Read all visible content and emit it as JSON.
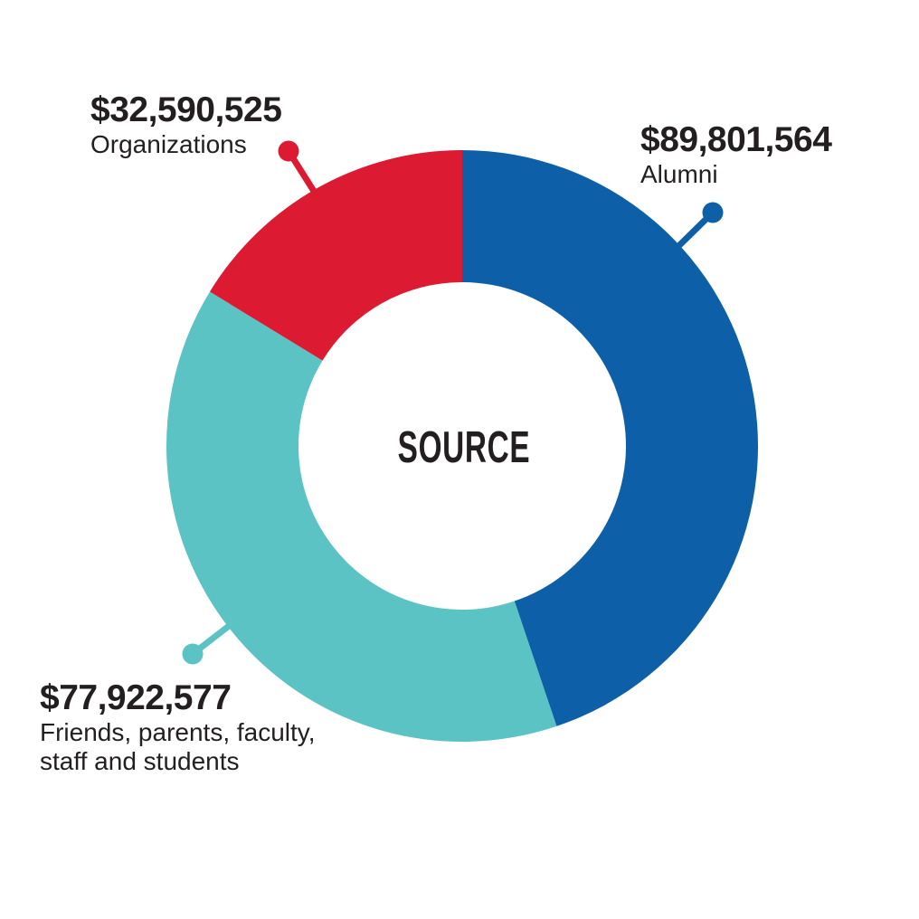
{
  "chart_data": {
    "type": "donut",
    "title": "SOURCE",
    "center_label": "SOURCE",
    "direction": "clockwise",
    "start_position": "top",
    "legend_position": "callouts-with-leader-lines",
    "background": "#FFFFFF",
    "text_color": "#231F20",
    "segments": [
      {
        "id": "alumni",
        "name": "Alumni",
        "amount": 89801564,
        "amount_display": "$89,801,564",
        "label_lines": [
          "Alumni"
        ],
        "color": "#0D60A8"
      },
      {
        "id": "friends",
        "name": "Friends, parents, faculty, staff and students",
        "amount": 77922577,
        "amount_display": "$77,922,577",
        "label_lines": [
          "Friends, parents, faculty,",
          "staff and students"
        ],
        "color": "#5BC3C4"
      },
      {
        "id": "organizations",
        "name": "Organizations",
        "amount": 32590525,
        "amount_display": "$32,590,525",
        "label_lines": [
          "Organizations"
        ],
        "color": "#DC1A32"
      }
    ]
  }
}
